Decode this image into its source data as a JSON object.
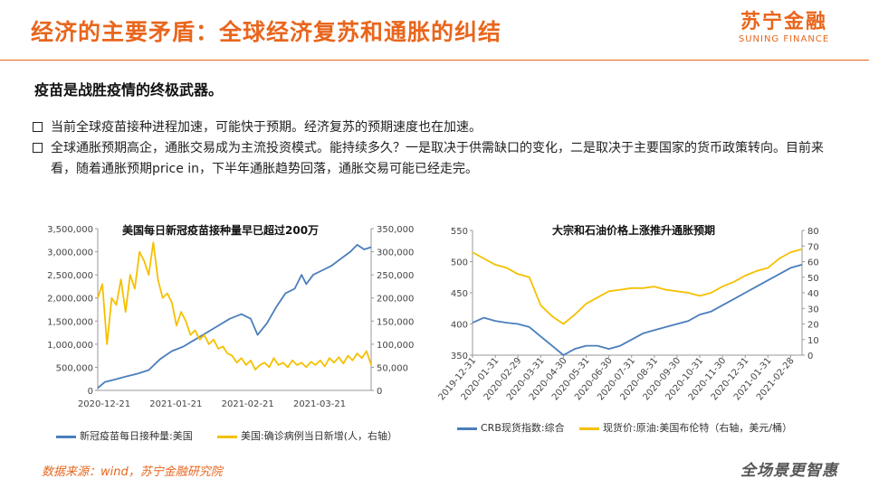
{
  "header": {
    "title": "经济的主要矛盾：全球经济复苏和通胀的纠结",
    "logo_cn": "苏宁金融",
    "logo_en": "SUNING FINANCE"
  },
  "subtitle": "疫苗是战胜疫情的终极武器。",
  "bullets": [
    "当前全球疫苗接种进程加速，可能快于预期。经济复苏的预期速度也在加速。",
    "全球通胀预期高企，通胀交易成为主流投资模式。能持续多久？一是取决于供需缺口的变化，二是取决于主要国家的货币政策转向。目前来看，随着通胀预期price in，下半年通胀趋势回落，通胀交易可能已经走完。"
  ],
  "colors": {
    "accent": "#e8661d",
    "series_blue": "#4a7ebb",
    "series_gold": "#f5c000"
  },
  "footer": {
    "source": "数据来源：wind，苏宁金融研究院",
    "brand": "全场景更智惠"
  },
  "chart_data": [
    {
      "type": "line",
      "title": "美国每日新冠疫苗接种量早已超过200万",
      "x_ticks": [
        "2020-12-21",
        "2021-01-21",
        "2021-02-21",
        "2021-03-21"
      ],
      "ylim": [
        0,
        3500000
      ],
      "y2lim": [
        0,
        350000
      ],
      "y_ticks": [
        "0",
        "500,000",
        "1,000,000",
        "1,500,000",
        "2,000,000",
        "2,500,000",
        "3,000,000",
        "3,500,000"
      ],
      "y2_ticks": [
        "0",
        "50,000",
        "100,000",
        "150,000",
        "200,000",
        "250,000",
        "300,000",
        "350,000"
      ],
      "series": [
        {
          "name": "新冠疫苗每日接种量:美国",
          "axis": "left",
          "values": [
            [
              0,
              50000
            ],
            [
              3,
              180000
            ],
            [
              7,
              230000
            ],
            [
              12,
              300000
            ],
            [
              17,
              360000
            ],
            [
              22,
              440000
            ],
            [
              27,
              680000
            ],
            [
              32,
              850000
            ],
            [
              37,
              950000
            ],
            [
              42,
              1100000
            ],
            [
              47,
              1250000
            ],
            [
              52,
              1400000
            ],
            [
              57,
              1550000
            ],
            [
              62,
              1650000
            ],
            [
              66,
              1550000
            ],
            [
              69,
              1200000
            ],
            [
              73,
              1450000
            ],
            [
              77,
              1800000
            ],
            [
              81,
              2100000
            ],
            [
              85,
              2200000
            ],
            [
              88,
              2500000
            ],
            [
              90,
              2300000
            ],
            [
              93,
              2500000
            ],
            [
              97,
              2600000
            ],
            [
              101,
              2700000
            ],
            [
              105,
              2850000
            ],
            [
              109,
              3000000
            ],
            [
              112,
              3150000
            ],
            [
              115,
              3050000
            ],
            [
              118,
              3100000
            ]
          ]
        },
        {
          "name": "美国:确诊病例当日新增(人，右轴）",
          "axis": "right",
          "values": [
            [
              0,
              200000
            ],
            [
              2,
              230000
            ],
            [
              4,
              100000
            ],
            [
              6,
              200000
            ],
            [
              8,
              185000
            ],
            [
              10,
              240000
            ],
            [
              12,
              170000
            ],
            [
              14,
              250000
            ],
            [
              16,
              220000
            ],
            [
              18,
              300000
            ],
            [
              20,
              280000
            ],
            [
              22,
              250000
            ],
            [
              24,
              320000
            ],
            [
              26,
              240000
            ],
            [
              28,
              200000
            ],
            [
              30,
              210000
            ],
            [
              32,
              190000
            ],
            [
              34,
              140000
            ],
            [
              36,
              170000
            ],
            [
              38,
              150000
            ],
            [
              40,
              120000
            ],
            [
              42,
              130000
            ],
            [
              44,
              110000
            ],
            [
              46,
              120000
            ],
            [
              48,
              100000
            ],
            [
              50,
              110000
            ],
            [
              52,
              90000
            ],
            [
              54,
              95000
            ],
            [
              56,
              80000
            ],
            [
              58,
              75000
            ],
            [
              60,
              60000
            ],
            [
              62,
              70000
            ],
            [
              64,
              55000
            ],
            [
              66,
              65000
            ],
            [
              68,
              45000
            ],
            [
              70,
              55000
            ],
            [
              72,
              60000
            ],
            [
              74,
              50000
            ],
            [
              76,
              70000
            ],
            [
              78,
              55000
            ],
            [
              80,
              60000
            ],
            [
              82,
              50000
            ],
            [
              84,
              65000
            ],
            [
              86,
              55000
            ],
            [
              88,
              60000
            ],
            [
              90,
              50000
            ],
            [
              92,
              62000
            ],
            [
              94,
              55000
            ],
            [
              96,
              65000
            ],
            [
              98,
              52000
            ],
            [
              100,
              70000
            ],
            [
              102,
              60000
            ],
            [
              104,
              72000
            ],
            [
              106,
              58000
            ],
            [
              108,
              75000
            ],
            [
              110,
              65000
            ],
            [
              112,
              80000
            ],
            [
              114,
              70000
            ],
            [
              116,
              85000
            ],
            [
              118,
              55000
            ]
          ]
        }
      ]
    },
    {
      "type": "line",
      "title": "大宗和石油价格上涨推升通胀预期",
      "x_ticks": [
        "2019-12-31",
        "2020-01-31",
        "2020-02-29",
        "2020-03-31",
        "2020-04-30",
        "2020-05-31",
        "2020-06-30",
        "2020-07-31",
        "2020-08-31",
        "2020-09-30",
        "2020-10-31",
        "2020-11-30",
        "2020-12-31",
        "2021-01-31",
        "2021-02-28"
      ],
      "ylim": [
        350,
        550
      ],
      "y2lim": [
        0,
        80
      ],
      "y_ticks": [
        "350",
        "400",
        "450",
        "500",
        "550"
      ],
      "y2_ticks": [
        "0",
        "10",
        "20",
        "30",
        "40",
        "50",
        "60",
        "70",
        "80"
      ],
      "series": [
        {
          "name": "CRB现货指数:综合",
          "axis": "left",
          "values": [
            [
              0,
              402
            ],
            [
              0.5,
              410
            ],
            [
              1,
              405
            ],
            [
              1.5,
              402
            ],
            [
              2,
              400
            ],
            [
              2.5,
              395
            ],
            [
              3,
              380
            ],
            [
              3.5,
              365
            ],
            [
              4,
              350
            ],
            [
              4.5,
              360
            ],
            [
              5,
              365
            ],
            [
              5.5,
              365
            ],
            [
              6,
              360
            ],
            [
              6.5,
              365
            ],
            [
              7,
              375
            ],
            [
              7.5,
              385
            ],
            [
              8,
              390
            ],
            [
              8.5,
              395
            ],
            [
              9,
              400
            ],
            [
              9.5,
              405
            ],
            [
              10,
              415
            ],
            [
              10.5,
              420
            ],
            [
              11,
              430
            ],
            [
              11.5,
              440
            ],
            [
              12,
              450
            ],
            [
              12.5,
              460
            ],
            [
              13,
              470
            ],
            [
              13.5,
              480
            ],
            [
              14,
              490
            ],
            [
              14.5,
              495
            ]
          ]
        },
        {
          "name": "现货价:原油:美国布伦特（右轴，美元/桶）",
          "axis": "right",
          "values": [
            [
              0,
              66
            ],
            [
              0.5,
              62
            ],
            [
              1,
              58
            ],
            [
              1.5,
              56
            ],
            [
              2,
              52
            ],
            [
              2.5,
              50
            ],
            [
              3,
              32
            ],
            [
              3.5,
              25
            ],
            [
              4,
              20
            ],
            [
              4.5,
              26
            ],
            [
              5,
              33
            ],
            [
              5.5,
              37
            ],
            [
              6,
              41
            ],
            [
              6.5,
              42
            ],
            [
              7,
              43
            ],
            [
              7.5,
              43
            ],
            [
              8,
              44
            ],
            [
              8.5,
              42
            ],
            [
              9,
              41
            ],
            [
              9.5,
              40
            ],
            [
              10,
              38
            ],
            [
              10.5,
              40
            ],
            [
              11,
              44
            ],
            [
              11.5,
              47
            ],
            [
              12,
              51
            ],
            [
              12.5,
              54
            ],
            [
              13,
              56
            ],
            [
              13.5,
              62
            ],
            [
              14,
              66
            ],
            [
              14.5,
              68
            ]
          ]
        }
      ]
    }
  ]
}
